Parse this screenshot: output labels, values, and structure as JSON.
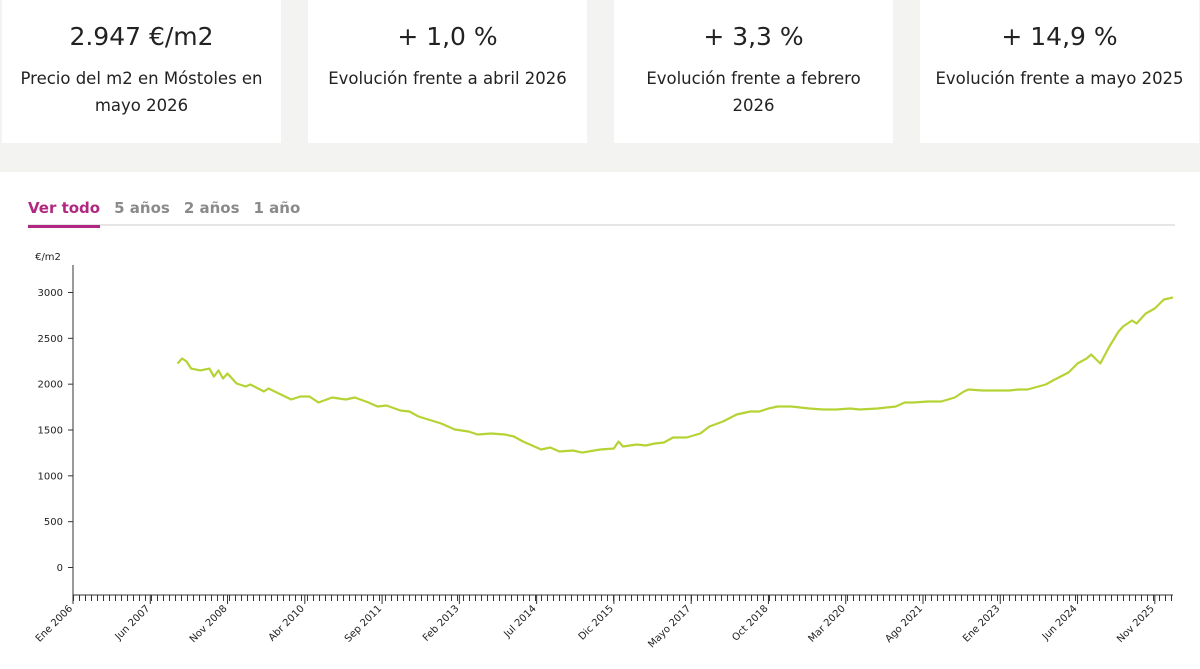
{
  "cards": [
    {
      "value": "2.947 €/m2",
      "label": "Precio del m2 en Móstoles en mayo 2026"
    },
    {
      "value": "+ 1,0 %",
      "label": "Evolución frente a abril 2026"
    },
    {
      "value": "+ 3,3 %",
      "label": "Evolución frente a febrero 2026"
    },
    {
      "value": "+ 14,9 %",
      "label": "Evolución frente a mayo 2025"
    }
  ],
  "tabs": [
    "Ver todo",
    "5 años",
    "2 años",
    "1 año"
  ],
  "chart_data": {
    "type": "line",
    "y_axis_label": "€/m2",
    "color": "#b5d334",
    "x": [
      "2007-12",
      "2008-01",
      "2008-02",
      "2008-03",
      "2008-05",
      "2008-07",
      "2008-08",
      "2008-09",
      "2008-10",
      "2008-11",
      "2009-01",
      "2009-03",
      "2009-04",
      "2009-07",
      "2009-08",
      "2010-01",
      "2010-03",
      "2010-05",
      "2010-07",
      "2010-10",
      "2011-01",
      "2011-03",
      "2011-06",
      "2011-08",
      "2011-10",
      "2012-01",
      "2012-03",
      "2012-05",
      "2012-10",
      "2013-01",
      "2013-04",
      "2013-06",
      "2013-09",
      "2013-12",
      "2014-02",
      "2014-04",
      "2014-08",
      "2014-10",
      "2014-12",
      "2015-03",
      "2015-05",
      "2015-09",
      "2015-12",
      "2016-01",
      "2016-02",
      "2016-05",
      "2016-07",
      "2016-09",
      "2016-11",
      "2017-01",
      "2017-04",
      "2017-07",
      "2017-09",
      "2017-12",
      "2018-03",
      "2018-06",
      "2018-08",
      "2018-10",
      "2018-12",
      "2019-03",
      "2019-05",
      "2019-07",
      "2019-10",
      "2020-01",
      "2020-04",
      "2020-06",
      "2020-10",
      "2021-02",
      "2021-04",
      "2021-06",
      "2021-09",
      "2021-12",
      "2022-03",
      "2022-05",
      "2022-06",
      "2022-09",
      "2023-01",
      "2023-03",
      "2023-05",
      "2023-07",
      "2023-11",
      "2024-01",
      "2024-04",
      "2024-06",
      "2024-08",
      "2024-09",
      "2024-11",
      "2025-01",
      "2025-03",
      "2025-04",
      "2025-06",
      "2025-07",
      "2025-09",
      "2025-11",
      "2026-01",
      "2026-02",
      "2026-03"
    ],
    "values": [
      2225,
      2280,
      2247,
      2170,
      2150,
      2170,
      2083,
      2150,
      2062,
      2116,
      2007,
      1975,
      1996,
      1920,
      1953,
      1833,
      1865,
      1865,
      1800,
      1855,
      1833,
      1855,
      1800,
      1756,
      1767,
      1713,
      1702,
      1647,
      1571,
      1505,
      1484,
      1451,
      1462,
      1451,
      1429,
      1375,
      1287,
      1309,
      1265,
      1276,
      1254,
      1287,
      1298,
      1375,
      1320,
      1342,
      1331,
      1353,
      1364,
      1418,
      1418,
      1462,
      1538,
      1593,
      1669,
      1702,
      1702,
      1735,
      1756,
      1756,
      1745,
      1735,
      1724,
      1724,
      1735,
      1724,
      1735,
      1756,
      1800,
      1800,
      1811,
      1811,
      1855,
      1920,
      1942,
      1931,
      1931,
      1931,
      1942,
      1942,
      1996,
      2051,
      2127,
      2225,
      2280,
      2324,
      2225,
      2411,
      2574,
      2629,
      2695,
      2662,
      2771,
      2825,
      2924,
      2935,
      2947
    ],
    "xlim": [
      "2006-01",
      "2026-03"
    ],
    "xticks": [
      {
        "value": "2006-01",
        "label": "Ene 2006"
      },
      {
        "value": "2007-06",
        "label": "Jun 2007"
      },
      {
        "value": "2008-11",
        "label": "Nov 2008"
      },
      {
        "value": "2010-04",
        "label": "Abr 2010"
      },
      {
        "value": "2011-09",
        "label": "Sep 2011"
      },
      {
        "value": "2013-02",
        "label": "Feb 2013"
      },
      {
        "value": "2014-07",
        "label": "Jul 2014"
      },
      {
        "value": "2015-12",
        "label": "Dic 2015"
      },
      {
        "value": "2017-05",
        "label": "Mayo 2017"
      },
      {
        "value": "2018-10",
        "label": "Oct 2018"
      },
      {
        "value": "2020-03",
        "label": "Mar 2020"
      },
      {
        "value": "2021-08",
        "label": "Ago 2021"
      },
      {
        "value": "2023-01",
        "label": "Ene 2023"
      },
      {
        "value": "2024-06",
        "label": "Jun 2024"
      },
      {
        "value": "2025-11",
        "label": "Nov 2025"
      }
    ],
    "ylim": [
      -300,
      3300
    ],
    "yticks": [
      0,
      500,
      1000,
      1500,
      2000,
      2500,
      3000
    ]
  }
}
